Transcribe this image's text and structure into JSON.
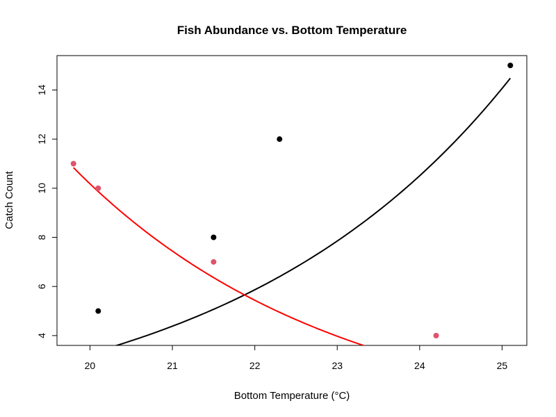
{
  "chart_data": {
    "type": "scatter",
    "title": "Fish Abundance vs. Bottom Temperature",
    "xlabel": "Bottom Temperature (°C)",
    "ylabel": "Catch Count",
    "xlim": [
      19.6,
      25.3
    ],
    "ylim": [
      3.6,
      15.4
    ],
    "x_ticks": [
      20,
      21,
      22,
      23,
      24,
      25
    ],
    "y_ticks": [
      4,
      6,
      8,
      10,
      12,
      14
    ],
    "grid": false,
    "legend": "none",
    "series": [
      {
        "color": "#000000",
        "points": [
          {
            "x": 20.1,
            "y": 5
          },
          {
            "x": 21.5,
            "y": 8
          },
          {
            "x": 22.3,
            "y": 12
          },
          {
            "x": 25.1,
            "y": 15
          }
        ],
        "fit": {
          "model": "exponential",
          "a": 0.00962,
          "b": 0.2915,
          "x_from": 20.1,
          "x_to": 25.1,
          "line_color": "#000000"
        }
      },
      {
        "color": "#DF536B",
        "points": [
          {
            "x": 19.8,
            "y": 11
          },
          {
            "x": 20.1,
            "y": 10
          },
          {
            "x": 21.5,
            "y": 7
          },
          {
            "x": 24.2,
            "y": 4
          }
        ],
        "fit": {
          "model": "exponential",
          "a": 5380,
          "b": -0.3135,
          "x_from": 19.8,
          "x_to": 24.2,
          "line_color": "#FF0000"
        }
      }
    ]
  }
}
